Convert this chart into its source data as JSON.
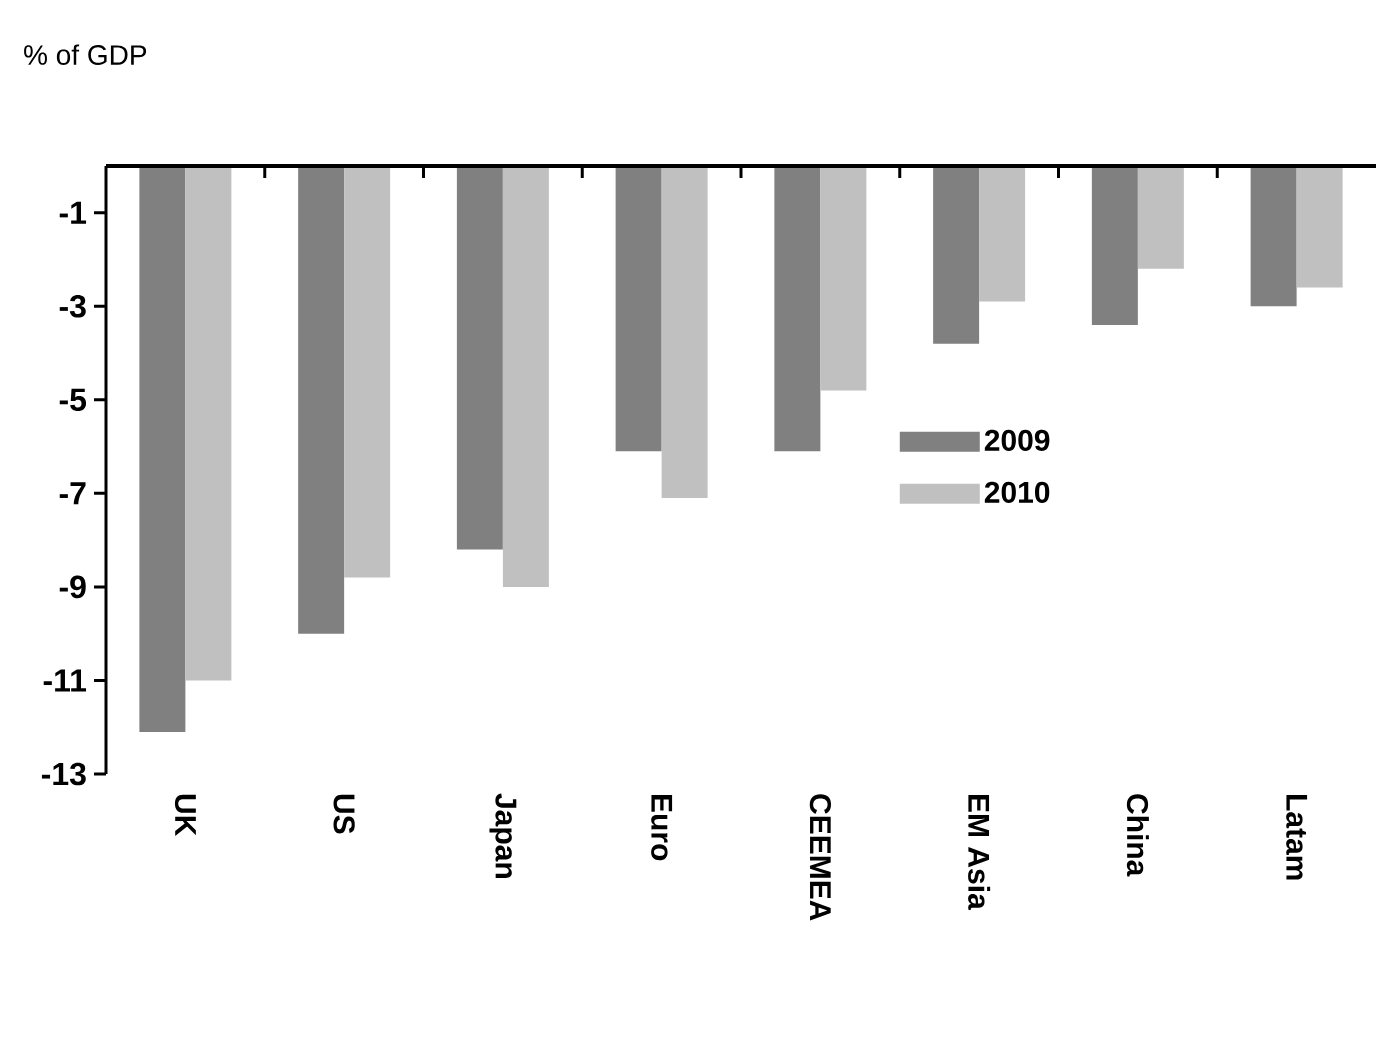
{
  "chart_data": {
    "type": "bar",
    "ylabel": "% of GDP",
    "categories": [
      "UK",
      "US",
      "Japan",
      "Euro",
      "CEEMEA",
      "EM Asia",
      "China",
      "Latam"
    ],
    "series": [
      {
        "name": "2009",
        "color": "#808080",
        "values": [
          -12.1,
          -10.0,
          -8.2,
          -6.1,
          -6.1,
          -3.8,
          -3.4,
          -3.0
        ]
      },
      {
        "name": "2010",
        "color": "#c0c0c0",
        "values": [
          -11.0,
          -8.8,
          -9.0,
          -7.1,
          -4.8,
          -2.9,
          -2.2,
          -2.6
        ]
      }
    ],
    "ylim": [
      -13,
      0
    ],
    "yticks": [
      -1,
      -3,
      -5,
      -7,
      -9,
      -11,
      -13
    ],
    "grid": false,
    "legend": "right"
  }
}
